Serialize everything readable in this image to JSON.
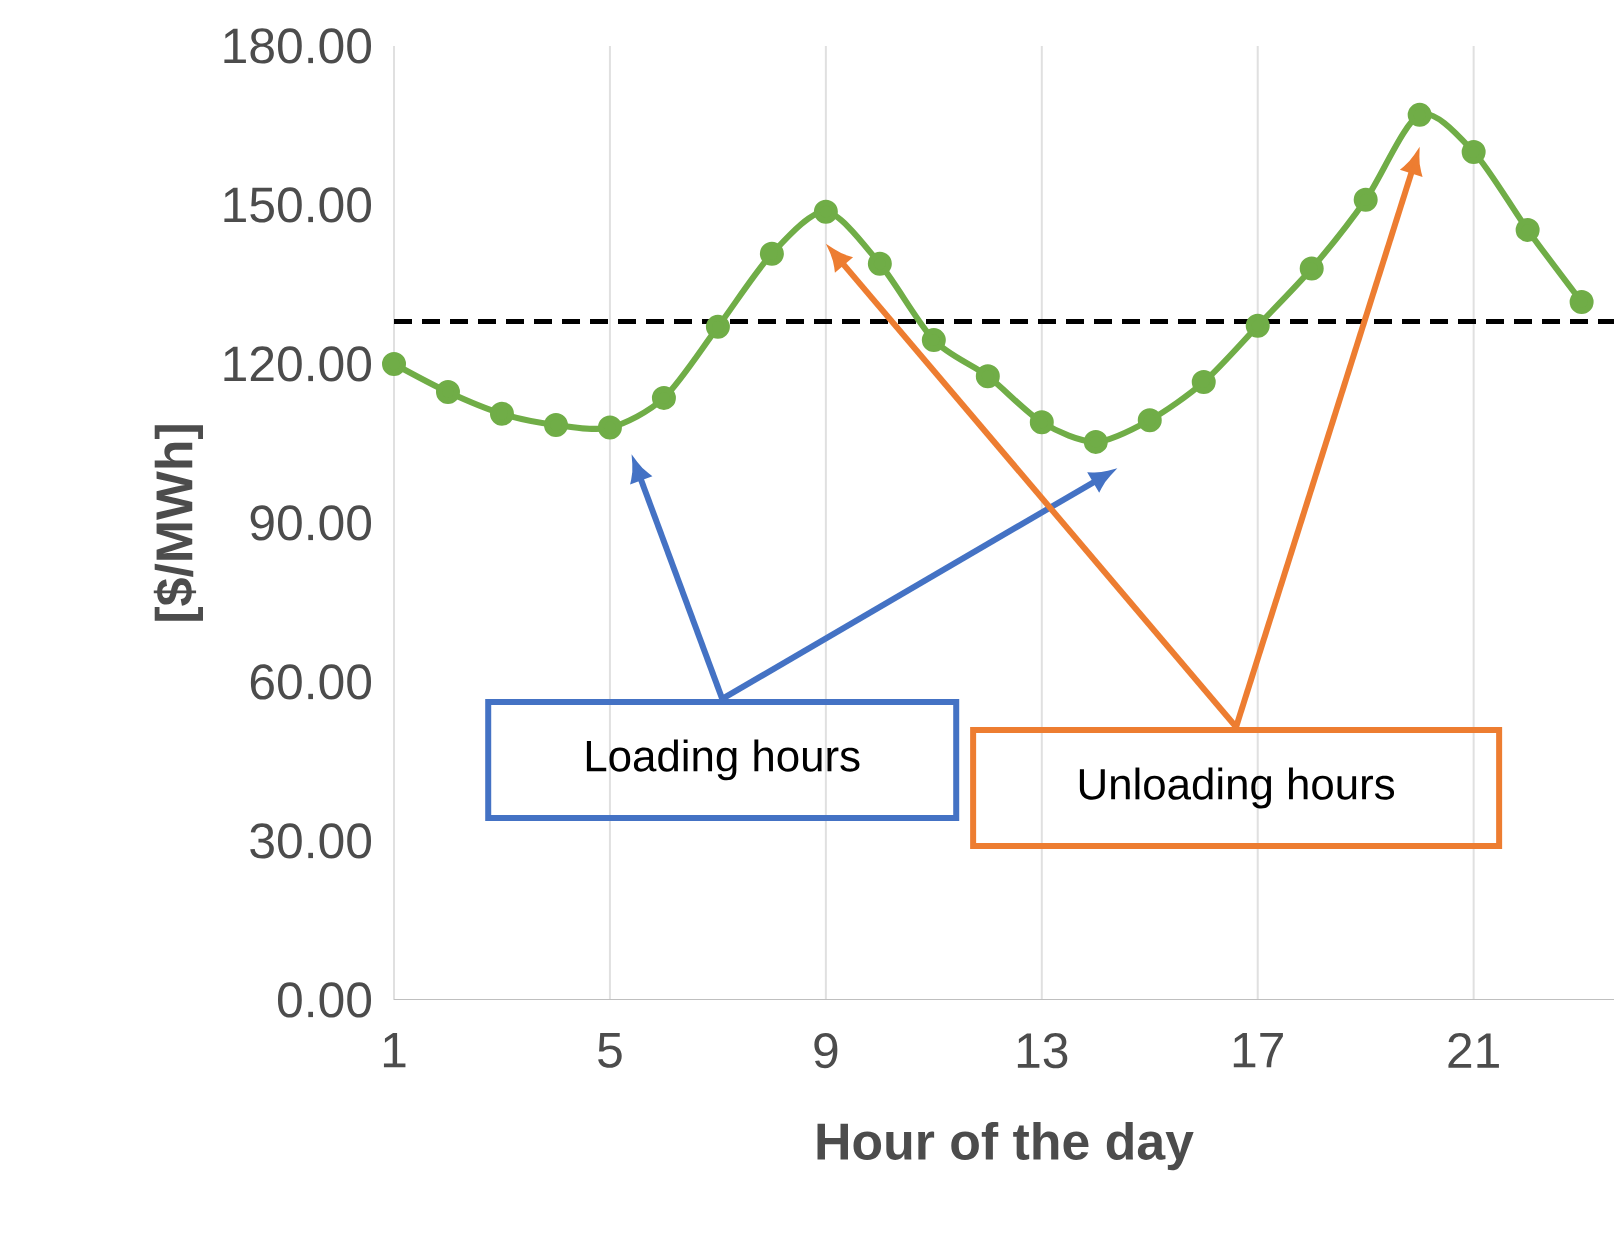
{
  "chart_data": {
    "type": "line",
    "xlabel": "Hour of the day",
    "ylabel": "[$/MWh]",
    "x": [
      1,
      2,
      3,
      4,
      5,
      6,
      7,
      8,
      9,
      10,
      11,
      12,
      13,
      14,
      15,
      16,
      17,
      18,
      19,
      20,
      21,
      22,
      23
    ],
    "series": [
      {
        "color": "#70ad47",
        "values": [
          120,
          114.7,
          110.6,
          108.5,
          108,
          113.6,
          127,
          140.8,
          148.7,
          138.9,
          124.5,
          117.7,
          109,
          105.3,
          109.4,
          116.6,
          127.2,
          138,
          151,
          167,
          160,
          145.3,
          131.7
        ]
      }
    ],
    "xlim": [
      1,
      23.6
    ],
    "ylim": [
      0,
      180
    ],
    "xticks": [
      1,
      5,
      9,
      13,
      17,
      21
    ],
    "yticks": [
      {
        "value": 0,
        "label": "0.00"
      },
      {
        "value": 30,
        "label": "30.00"
      },
      {
        "value": 60,
        "label": "60.00"
      },
      {
        "value": 90,
        "label": "90.00"
      },
      {
        "value": 120,
        "label": "120.00"
      },
      {
        "value": 150,
        "label": "150.00"
      },
      {
        "value": 180,
        "label": "180.00"
      }
    ],
    "grid": "x",
    "marker": "circle",
    "line_style": "solid",
    "ref_lines": [
      {
        "axis": "y",
        "value": 128,
        "color": "#000000",
        "line_style": "dashed"
      }
    ],
    "annotations": [
      "Loading hours",
      "Unloading hours"
    ]
  }
}
